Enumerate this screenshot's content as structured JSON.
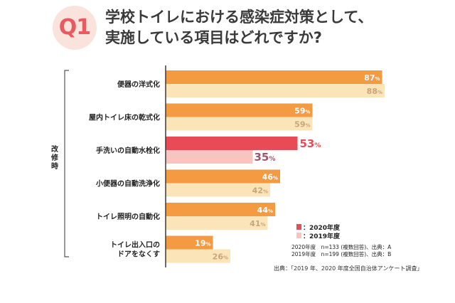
{
  "header": {
    "badge": "Q1",
    "title_line1": "学校トイレにおける感染症対策として、",
    "title_line2": "実施している項目はどれですか?"
  },
  "group_label": "改修時",
  "legend": {
    "items": [
      {
        "label": "：2020年度",
        "color": "#e84a56"
      },
      {
        "label": "：2019年度",
        "color": "#f7c4bf"
      }
    ],
    "note_line1": "2020年度　n=133 (複数回答)、出典：A",
    "note_line2": "2019年度　n=199 (複数回答)、出典：B"
  },
  "source": "出典：｢2019 年、2020 年度全国自治体アンケート調査｣",
  "chart_data": {
    "type": "bar",
    "orientation": "horizontal",
    "categories": [
      [
        "便器の洋式化"
      ],
      [
        "屋内トイレ床の乾式化"
      ],
      [
        "手洗いの自動水栓化"
      ],
      [
        "小便器の自動洗浄化"
      ],
      [
        "トイレ照明の自動化"
      ],
      [
        "トイレ出入口の",
        "ドアをなくす"
      ]
    ],
    "series": [
      {
        "name": "2020年度",
        "values": [
          87,
          59,
          53,
          46,
          44,
          19
        ],
        "colors": [
          "#f39a42",
          "#f39a42",
          "#e84a56",
          "#f39a42",
          "#f39a42",
          "#f39a42"
        ]
      },
      {
        "name": "2019年度",
        "values": [
          88,
          59,
          35,
          42,
          41,
          26
        ],
        "colors": [
          "#fbe4b8",
          "#fbe4b8",
          "#f7c4bf",
          "#fbe4b8",
          "#fbe4b8",
          "#fbe4b8"
        ]
      }
    ],
    "value_suffix": "%",
    "xlim": [
      0,
      100
    ],
    "label_colors": {
      "2020": "#ffffff",
      "2019": "#c9a57a",
      "2020_highlight": "#e84a56",
      "2019_highlight": "#a0566a"
    }
  }
}
